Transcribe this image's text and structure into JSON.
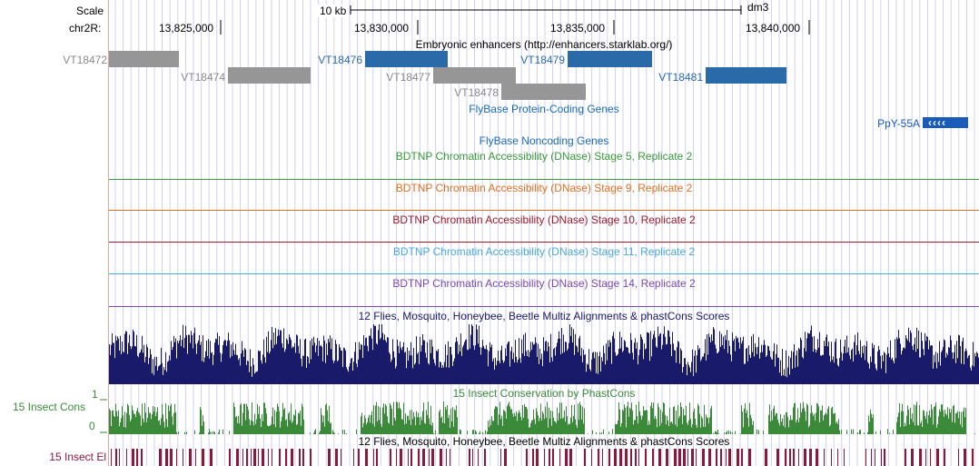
{
  "ruler": {
    "scale_label": "Scale",
    "chrom_label": "chr2R:",
    "scale_text": "10 kb",
    "assembly": "dm3",
    "positions": [
      "13,825,000",
      "13,830,000",
      "13,835,000",
      "13,840,000"
    ]
  },
  "enhancers": {
    "title": "Embryonic enhancers (http://enhancers.starklab.org/)",
    "features": [
      {
        "name": "VT18472",
        "color": "gray"
      },
      {
        "name": "VT18474",
        "color": "gray"
      },
      {
        "name": "VT18476",
        "color": "blue"
      },
      {
        "name": "VT18477",
        "color": "gray"
      },
      {
        "name": "VT18478",
        "color": "gray"
      },
      {
        "name": "VT18479",
        "color": "blue"
      },
      {
        "name": "VT18481",
        "color": "blue"
      }
    ]
  },
  "genes": {
    "protein_coding_title": "FlyBase Protein-Coding Genes",
    "gene_name": "PpY-55A",
    "gene_strand_glyph": "‹‹‹‹",
    "noncoding_title": "FlyBase Noncoding Genes"
  },
  "dnase_tracks": [
    {
      "title": "BDTNP Chromatin Accessibility (DNase) Stage 5, Replicate 2",
      "color": "#3a9a3a"
    },
    {
      "title": "BDTNP Chromatin Accessibility (DNase) Stage 9, Replicate 2",
      "color": "#e07020"
    },
    {
      "title": "BDTNP Chromatin Accessibility (DNase) Stage 10, Replicate 2",
      "color": "#9a1a2a"
    },
    {
      "title": "BDTNP Chromatin Accessibility (DNase) Stage 11, Replicate 2",
      "color": "#4aa8d8"
    },
    {
      "title": "BDTNP Chromatin Accessibility (DNase) Stage 14, Replicate 2",
      "color": "#7a4ab0"
    }
  ],
  "multiz": {
    "title": "12 Flies, Mosquito, Honeybee, Beetle Multiz Alignments & phastCons Scores",
    "color": "#1a1a6a"
  },
  "phastcons": {
    "title": "15 Insect Conservation by PhastCons",
    "side_label": "15 Insect Cons",
    "max_label": "1",
    "min_label": "0",
    "color": "#3a8a3a"
  },
  "elements": {
    "title": "12 Flies, Mosquito, Honeybee, Beetle Multiz Alignments & phastCons Scores",
    "side_label": "15 Insect El",
    "color": "#8a1a3a"
  },
  "colors": {
    "feature_gray": "#969696",
    "feature_blue": "#2a6aa8",
    "label_gray": "#8a8a8a",
    "label_blue": "#2a6aa8",
    "title_blue": "#1a6ab8",
    "gene_blue": "#1a5ab8",
    "grid": "#d0d0f0"
  }
}
